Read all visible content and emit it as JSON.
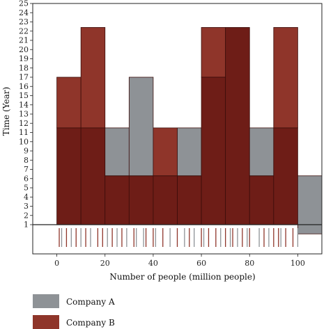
{
  "chart_data": {
    "type": "histogram",
    "xlabel": "Number of people (million people)",
    "ylabel": "Time (Year)",
    "xlim": [
      -10,
      110
    ],
    "ylim": [
      1,
      25
    ],
    "x_ticks": [
      0,
      20,
      40,
      60,
      80,
      100
    ],
    "y_ticks": [
      1,
      2,
      3,
      4,
      5,
      6,
      7,
      8,
      9,
      10,
      11,
      12,
      13,
      14,
      15,
      16,
      17,
      18,
      19,
      20,
      21,
      22,
      23,
      24,
      25
    ],
    "bin_width": 10,
    "bins": [
      0,
      10,
      20,
      30,
      40,
      50,
      60,
      70,
      80,
      90,
      100
    ],
    "colors": {
      "overlap": "#6e1d17",
      "company_a": "#8e9296",
      "company_b": "#8f352a"
    },
    "series": [
      {
        "name": "Company A",
        "color": "#8e9296",
        "values": [
          11.5,
          11.5,
          11.5,
          17,
          6.3,
          11.5,
          17,
          22.4,
          11.5,
          11.5,
          6.3
        ]
      },
      {
        "name": "Company B",
        "color": "#8f352a",
        "values": [
          17,
          22.4,
          6.3,
          6.3,
          11.5,
          6.3,
          22.4,
          22.4,
          6.3,
          22.4,
          0
        ]
      }
    ],
    "rug": {
      "company_a": [
        2,
        6,
        10,
        14,
        21,
        25,
        29,
        33,
        36,
        41,
        47,
        53,
        57,
        61,
        68,
        72,
        75,
        79,
        84,
        88,
        93,
        100
      ],
      "company_b": [
        1,
        4,
        8,
        12,
        17,
        19,
        23,
        27,
        32,
        37,
        40,
        44,
        50,
        55,
        60,
        63,
        66,
        70,
        73,
        77,
        80,
        86,
        90,
        92,
        95,
        98
      ]
    }
  },
  "legend": {
    "items": [
      {
        "label": "Company A",
        "color": "#8e9296"
      },
      {
        "label": "Company B",
        "color": "#8f352a"
      }
    ]
  }
}
